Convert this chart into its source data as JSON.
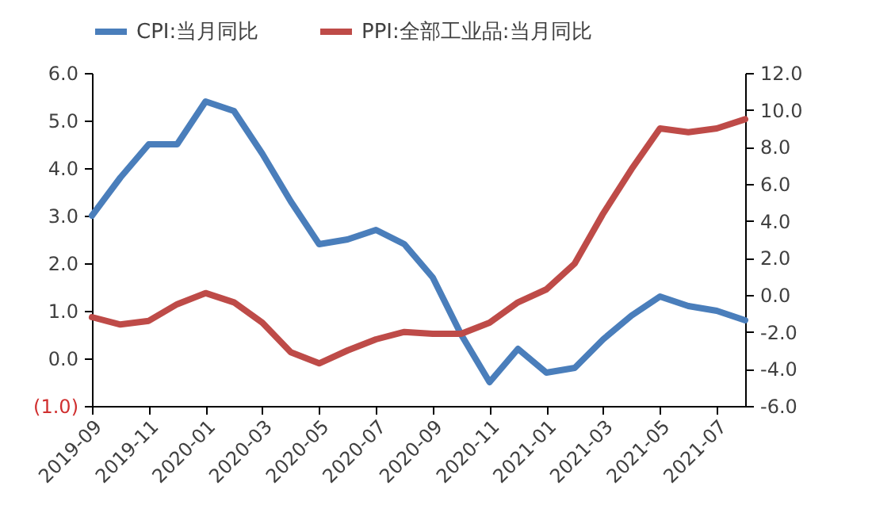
{
  "chart_data": {
    "type": "line",
    "categories": [
      "2019-09",
      null,
      "2019-11",
      null,
      "2020-01",
      null,
      "2020-03",
      null,
      "2020-05",
      null,
      "2020-07",
      null,
      "2020-09",
      null,
      "2020-11",
      null,
      "2021-01",
      null,
      "2021-03",
      null,
      "2021-05",
      null,
      "2021-07",
      null
    ],
    "series": [
      {
        "name": "CPI:当月同比",
        "color": "#4a7ebb",
        "values": [
          3.0,
          3.8,
          4.5,
          4.5,
          5.4,
          5.2,
          4.3,
          3.3,
          2.4,
          2.5,
          2.7,
          2.4,
          1.7,
          0.5,
          -0.5,
          0.2,
          -0.3,
          -0.2,
          0.4,
          0.9,
          1.3,
          1.1,
          1.0,
          0.8
        ]
      },
      {
        "name": "PPI:全部工业品:当月同比",
        "color": "#be4b48",
        "axis": "y2",
        "values": [
          -1.2,
          -1.6,
          -1.4,
          -0.5,
          0.1,
          -0.4,
          -1.5,
          -3.1,
          -3.7,
          -3.0,
          -2.4,
          -2.0,
          -2.1,
          -2.1,
          -1.5,
          -0.4,
          0.3,
          1.7,
          4.4,
          6.8,
          9.0,
          8.8,
          9.0,
          9.5
        ]
      }
    ],
    "ylim": [
      -1,
      6
    ],
    "yticks": [
      {
        "value": -1,
        "label": "(1.0)"
      },
      {
        "value": 0,
        "label": "0.0"
      },
      {
        "value": 1,
        "label": "1.0"
      },
      {
        "value": 2,
        "label": "2.0"
      },
      {
        "value": 3,
        "label": "3.0"
      },
      {
        "value": 4,
        "label": "4.0"
      },
      {
        "value": 5,
        "label": "5.0"
      },
      {
        "value": 6,
        "label": "6.0"
      }
    ],
    "y2lim": [
      -6,
      12
    ],
    "y2ticks": [
      {
        "value": -6,
        "label": "-6.0"
      },
      {
        "value": -4,
        "label": "-4.0"
      },
      {
        "value": -2,
        "label": "-2.0"
      },
      {
        "value": 0,
        "label": "0.0"
      },
      {
        "value": 2,
        "label": "2.0"
      },
      {
        "value": 4,
        "label": "4.0"
      },
      {
        "value": 6,
        "label": "6.0"
      },
      {
        "value": 8,
        "label": "8.0"
      },
      {
        "value": 10,
        "label": "10.0"
      },
      {
        "value": 12,
        "label": "12.0"
      }
    ],
    "legend": "top",
    "grid": false,
    "marker": "none",
    "line_style": "solid"
  }
}
